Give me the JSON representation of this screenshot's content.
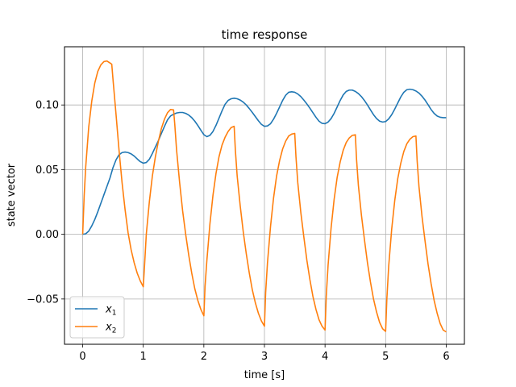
{
  "chart_data": {
    "type": "line",
    "title": "time response",
    "xlabel": "time [s]",
    "ylabel": "state vector",
    "xlim": [
      -0.3,
      6.3
    ],
    "ylim": [
      -0.085,
      0.145
    ],
    "xticks": [
      0,
      1,
      2,
      3,
      4,
      5,
      6
    ],
    "xtick_labels": [
      "0",
      "1",
      "2",
      "3",
      "4",
      "5",
      "6"
    ],
    "yticks": [
      -0.05,
      0.0,
      0.05,
      0.1
    ],
    "ytick_labels": [
      "−0.05",
      "0.00",
      "0.05",
      "0.10"
    ],
    "grid": true,
    "legend_position": "lower-left",
    "series": [
      {
        "name": "x",
        "subscript": "1",
        "color": "#1f77b4",
        "points": [
          [
            0.0,
            0.0
          ],
          [
            0.05,
            0.0004
          ],
          [
            0.1,
            0.0025
          ],
          [
            0.15,
            0.0065
          ],
          [
            0.2,
            0.0115
          ],
          [
            0.25,
            0.0175
          ],
          [
            0.3,
            0.024
          ],
          [
            0.35,
            0.0305
          ],
          [
            0.4,
            0.037
          ],
          [
            0.45,
            0.0435
          ],
          [
            0.5,
            0.0515
          ],
          [
            0.55,
            0.0575
          ],
          [
            0.6,
            0.0615
          ],
          [
            0.65,
            0.0632
          ],
          [
            0.7,
            0.0636
          ],
          [
            0.75,
            0.0632
          ],
          [
            0.8,
            0.0622
          ],
          [
            0.85,
            0.0605
          ],
          [
            0.9,
            0.0583
          ],
          [
            0.95,
            0.0562
          ],
          [
            1.0,
            0.055
          ],
          [
            1.05,
            0.0555
          ],
          [
            1.1,
            0.058
          ],
          [
            1.15,
            0.0625
          ],
          [
            1.2,
            0.0675
          ],
          [
            1.25,
            0.0725
          ],
          [
            1.3,
            0.078
          ],
          [
            1.35,
            0.0835
          ],
          [
            1.4,
            0.0885
          ],
          [
            1.45,
            0.0915
          ],
          [
            1.5,
            0.0928
          ],
          [
            1.55,
            0.0938
          ],
          [
            1.6,
            0.0942
          ],
          [
            1.65,
            0.0942
          ],
          [
            1.7,
            0.0935
          ],
          [
            1.75,
            0.0922
          ],
          [
            1.8,
            0.0902
          ],
          [
            1.85,
            0.0875
          ],
          [
            1.9,
            0.0842
          ],
          [
            1.95,
            0.0805
          ],
          [
            2.0,
            0.077
          ],
          [
            2.05,
            0.0755
          ],
          [
            2.1,
            0.0765
          ],
          [
            2.15,
            0.0795
          ],
          [
            2.2,
            0.0842
          ],
          [
            2.25,
            0.0898
          ],
          [
            2.3,
            0.0955
          ],
          [
            2.35,
            0.1005
          ],
          [
            2.4,
            0.1035
          ],
          [
            2.45,
            0.1048
          ],
          [
            2.5,
            0.1052
          ],
          [
            2.55,
            0.1048
          ],
          [
            2.6,
            0.1038
          ],
          [
            2.65,
            0.1022
          ],
          [
            2.7,
            0.1
          ],
          [
            2.75,
            0.0972
          ],
          [
            2.8,
            0.0942
          ],
          [
            2.85,
            0.091
          ],
          [
            2.9,
            0.0878
          ],
          [
            2.95,
            0.085
          ],
          [
            3.0,
            0.0835
          ],
          [
            3.05,
            0.0838
          ],
          [
            3.1,
            0.0855
          ],
          [
            3.15,
            0.089
          ],
          [
            3.2,
            0.0935
          ],
          [
            3.25,
            0.0985
          ],
          [
            3.3,
            0.1035
          ],
          [
            3.35,
            0.1075
          ],
          [
            3.4,
            0.1098
          ],
          [
            3.45,
            0.1102
          ],
          [
            3.5,
            0.1098
          ],
          [
            3.55,
            0.1085
          ],
          [
            3.6,
            0.1065
          ],
          [
            3.65,
            0.1038
          ],
          [
            3.7,
            0.1008
          ],
          [
            3.75,
            0.0975
          ],
          [
            3.8,
            0.094
          ],
          [
            3.85,
            0.0905
          ],
          [
            3.9,
            0.0875
          ],
          [
            3.95,
            0.0858
          ],
          [
            4.0,
            0.0855
          ],
          [
            4.05,
            0.0868
          ],
          [
            4.1,
            0.0895
          ],
          [
            4.15,
            0.0935
          ],
          [
            4.2,
            0.0985
          ],
          [
            4.25,
            0.1035
          ],
          [
            4.3,
            0.1078
          ],
          [
            4.35,
            0.1105
          ],
          [
            4.4,
            0.1115
          ],
          [
            4.45,
            0.1115
          ],
          [
            4.5,
            0.1105
          ],
          [
            4.55,
            0.1088
          ],
          [
            4.6,
            0.1065
          ],
          [
            4.65,
            0.1035
          ],
          [
            4.7,
            0.1
          ],
          [
            4.75,
            0.0962
          ],
          [
            4.8,
            0.0925
          ],
          [
            4.85,
            0.0895
          ],
          [
            4.9,
            0.0875
          ],
          [
            4.95,
            0.0868
          ],
          [
            5.0,
            0.0872
          ],
          [
            5.05,
            0.0892
          ],
          [
            5.1,
            0.0925
          ],
          [
            5.15,
            0.0968
          ],
          [
            5.2,
            0.1015
          ],
          [
            5.25,
            0.1062
          ],
          [
            5.3,
            0.1098
          ],
          [
            5.35,
            0.1118
          ],
          [
            5.4,
            0.1122
          ],
          [
            5.45,
            0.1118
          ],
          [
            5.5,
            0.1108
          ],
          [
            5.55,
            0.1092
          ],
          [
            5.6,
            0.1068
          ],
          [
            5.65,
            0.1038
          ],
          [
            5.7,
            0.1002
          ],
          [
            5.75,
            0.0965
          ],
          [
            5.8,
            0.0935
          ],
          [
            5.85,
            0.0915
          ],
          [
            5.9,
            0.0905
          ],
          [
            5.95,
            0.0902
          ],
          [
            6.0,
            0.0902
          ]
        ]
      },
      {
        "name": "x",
        "subscript": "2",
        "color": "#ff7f0e",
        "points": [
          [
            0.0,
            0.0
          ],
          [
            0.025,
            0.03
          ],
          [
            0.05,
            0.052
          ],
          [
            0.1,
            0.083
          ],
          [
            0.15,
            0.103
          ],
          [
            0.2,
            0.117
          ],
          [
            0.25,
            0.126
          ],
          [
            0.3,
            0.131
          ],
          [
            0.35,
            0.1335
          ],
          [
            0.4,
            0.134
          ],
          [
            0.45,
            0.1325
          ],
          [
            0.48,
            0.1315
          ],
          [
            0.5,
            0.12
          ],
          [
            0.55,
            0.093
          ],
          [
            0.6,
            0.065
          ],
          [
            0.65,
            0.04
          ],
          [
            0.7,
            0.019
          ],
          [
            0.75,
            0.001
          ],
          [
            0.8,
            -0.012
          ],
          [
            0.85,
            -0.022
          ],
          [
            0.9,
            -0.03
          ],
          [
            0.95,
            -0.036
          ],
          [
            1.0,
            -0.0405
          ],
          [
            1.02,
            -0.025
          ],
          [
            1.05,
            0.0
          ],
          [
            1.1,
            0.025
          ],
          [
            1.15,
            0.045
          ],
          [
            1.2,
            0.06
          ],
          [
            1.25,
            0.072
          ],
          [
            1.3,
            0.082
          ],
          [
            1.35,
            0.089
          ],
          [
            1.4,
            0.094
          ],
          [
            1.45,
            0.0965
          ],
          [
            1.5,
            0.0962
          ],
          [
            1.52,
            0.085
          ],
          [
            1.55,
            0.065
          ],
          [
            1.6,
            0.04
          ],
          [
            1.65,
            0.018
          ],
          [
            1.7,
            0.0
          ],
          [
            1.75,
            -0.016
          ],
          [
            1.8,
            -0.03
          ],
          [
            1.85,
            -0.042
          ],
          [
            1.9,
            -0.051
          ],
          [
            1.95,
            -0.058
          ],
          [
            2.0,
            -0.063
          ],
          [
            2.02,
            -0.04
          ],
          [
            2.05,
            -0.02
          ],
          [
            2.1,
            0.008
          ],
          [
            2.15,
            0.03
          ],
          [
            2.2,
            0.047
          ],
          [
            2.25,
            0.06
          ],
          [
            2.3,
            0.069
          ],
          [
            2.35,
            0.075
          ],
          [
            2.4,
            0.0795
          ],
          [
            2.45,
            0.0825
          ],
          [
            2.5,
            0.0835
          ],
          [
            2.52,
            0.065
          ],
          [
            2.55,
            0.045
          ],
          [
            2.6,
            0.022
          ],
          [
            2.65,
            0.002
          ],
          [
            2.7,
            -0.015
          ],
          [
            2.75,
            -0.03
          ],
          [
            2.8,
            -0.043
          ],
          [
            2.85,
            -0.053
          ],
          [
            2.9,
            -0.061
          ],
          [
            2.95,
            -0.067
          ],
          [
            3.0,
            -0.071
          ],
          [
            3.02,
            -0.045
          ],
          [
            3.05,
            -0.022
          ],
          [
            3.1,
            0.006
          ],
          [
            3.15,
            0.028
          ],
          [
            3.2,
            0.045
          ],
          [
            3.25,
            0.057
          ],
          [
            3.3,
            0.066
          ],
          [
            3.35,
            0.072
          ],
          [
            3.4,
            0.076
          ],
          [
            3.45,
            0.0775
          ],
          [
            3.5,
            0.078
          ],
          [
            3.52,
            0.06
          ],
          [
            3.55,
            0.04
          ],
          [
            3.6,
            0.017
          ],
          [
            3.65,
            -0.002
          ],
          [
            3.7,
            -0.02
          ],
          [
            3.75,
            -0.035
          ],
          [
            3.8,
            -0.048
          ],
          [
            3.85,
            -0.058
          ],
          [
            3.9,
            -0.066
          ],
          [
            3.95,
            -0.071
          ],
          [
            4.0,
            -0.074
          ],
          [
            4.02,
            -0.048
          ],
          [
            4.05,
            -0.024
          ],
          [
            4.1,
            0.005
          ],
          [
            4.15,
            0.027
          ],
          [
            4.2,
            0.044
          ],
          [
            4.25,
            0.056
          ],
          [
            4.3,
            0.065
          ],
          [
            4.35,
            0.071
          ],
          [
            4.4,
            0.0745
          ],
          [
            4.45,
            0.0765
          ],
          [
            4.5,
            0.077
          ],
          [
            4.52,
            0.058
          ],
          [
            4.55,
            0.038
          ],
          [
            4.6,
            0.015
          ],
          [
            4.65,
            -0.004
          ],
          [
            4.7,
            -0.022
          ],
          [
            4.75,
            -0.037
          ],
          [
            4.8,
            -0.05
          ],
          [
            4.85,
            -0.06
          ],
          [
            4.9,
            -0.068
          ],
          [
            4.95,
            -0.073
          ],
          [
            5.0,
            -0.075
          ],
          [
            5.02,
            -0.05
          ],
          [
            5.05,
            -0.025
          ],
          [
            5.1,
            0.004
          ],
          [
            5.15,
            0.026
          ],
          [
            5.2,
            0.043
          ],
          [
            5.25,
            0.055
          ],
          [
            5.3,
            0.064
          ],
          [
            5.35,
            0.07
          ],
          [
            5.4,
            0.0735
          ],
          [
            5.45,
            0.0755
          ],
          [
            5.5,
            0.076
          ],
          [
            5.52,
            0.057
          ],
          [
            5.55,
            0.037
          ],
          [
            5.6,
            0.014
          ],
          [
            5.65,
            -0.005
          ],
          [
            5.7,
            -0.023
          ],
          [
            5.75,
            -0.038
          ],
          [
            5.8,
            -0.051
          ],
          [
            5.85,
            -0.061
          ],
          [
            5.9,
            -0.069
          ],
          [
            5.95,
            -0.074
          ],
          [
            6.0,
            -0.0755
          ]
        ]
      }
    ]
  }
}
